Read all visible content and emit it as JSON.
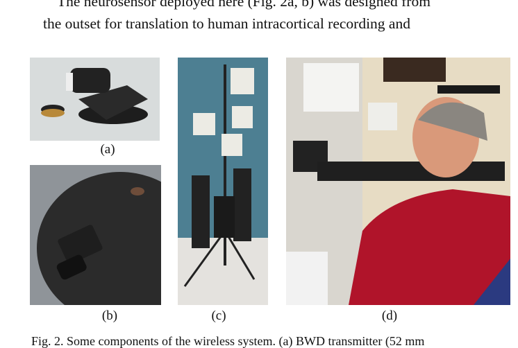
{
  "body": {
    "lines": [
      "The neurosensor deployed here (Fig. 2a, b) was designed from",
      "the outset for translation to human intracortical recording and"
    ]
  },
  "figure": {
    "panels": [
      {
        "label": "(a)"
      },
      {
        "label": "(b)"
      },
      {
        "label": "(c)"
      },
      {
        "label": "(d)"
      }
    ],
    "caption": "Fig. 2.    Some components of the wireless system. (a) BWD transmitter (52 mm"
  }
}
